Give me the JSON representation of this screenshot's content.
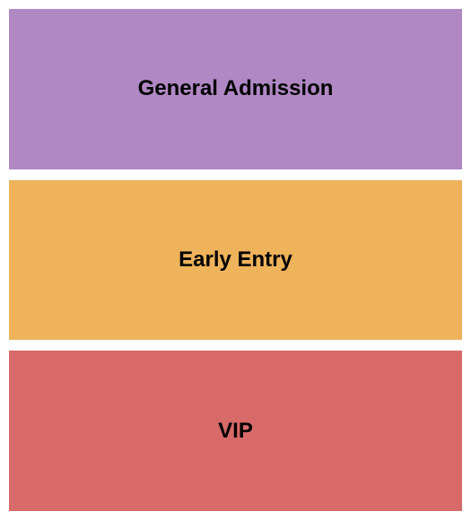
{
  "seating_chart": {
    "type": "infographic",
    "background_color": "#ffffff",
    "section_gap": 12,
    "padding": 10,
    "label_fontsize": 24,
    "label_fontweight": "bold",
    "label_color": "#000000",
    "sections": [
      {
        "label": "General Admission",
        "background_color": "#b088c4"
      },
      {
        "label": "Early Entry",
        "background_color": "#efb35b"
      },
      {
        "label": "VIP",
        "background_color": "#d86a6a"
      }
    ]
  }
}
